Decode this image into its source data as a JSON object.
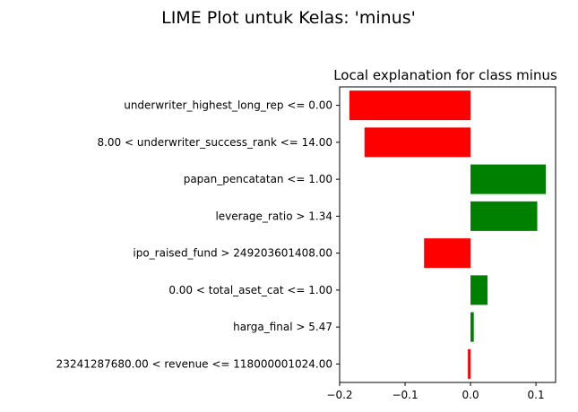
{
  "chart_data": {
    "type": "bar",
    "orientation": "horizontal",
    "suptitle": "LIME Plot untuk Kelas: 'minus'",
    "title": "Local explanation for class minus",
    "xlabel": "",
    "ylabel": "",
    "xlim": [
      -0.2,
      0.13
    ],
    "xticks": [
      -0.2,
      -0.1,
      0.0,
      0.1
    ],
    "xtick_labels": [
      "−0.2",
      "−0.1",
      "0.0",
      "0.1"
    ],
    "grid": false,
    "categories": [
      "underwriter_highest_long_rep <= 0.00",
      "8.00 < underwriter_success_rank <= 14.00",
      "papan_pencatatan <= 1.00",
      "leverage_ratio > 1.34",
      "ipo_raised_fund > 249203601408.00",
      "0.00 < total_aset_cat <= 1.00",
      "harga_final > 5.47",
      "23241287680.00 < revenue <= 118000001024.00"
    ],
    "values": [
      -0.185,
      -0.162,
      0.115,
      0.102,
      -0.071,
      0.026,
      0.005,
      -0.004
    ],
    "colors": {
      "positive": "#008000",
      "negative": "#ff0000"
    }
  }
}
